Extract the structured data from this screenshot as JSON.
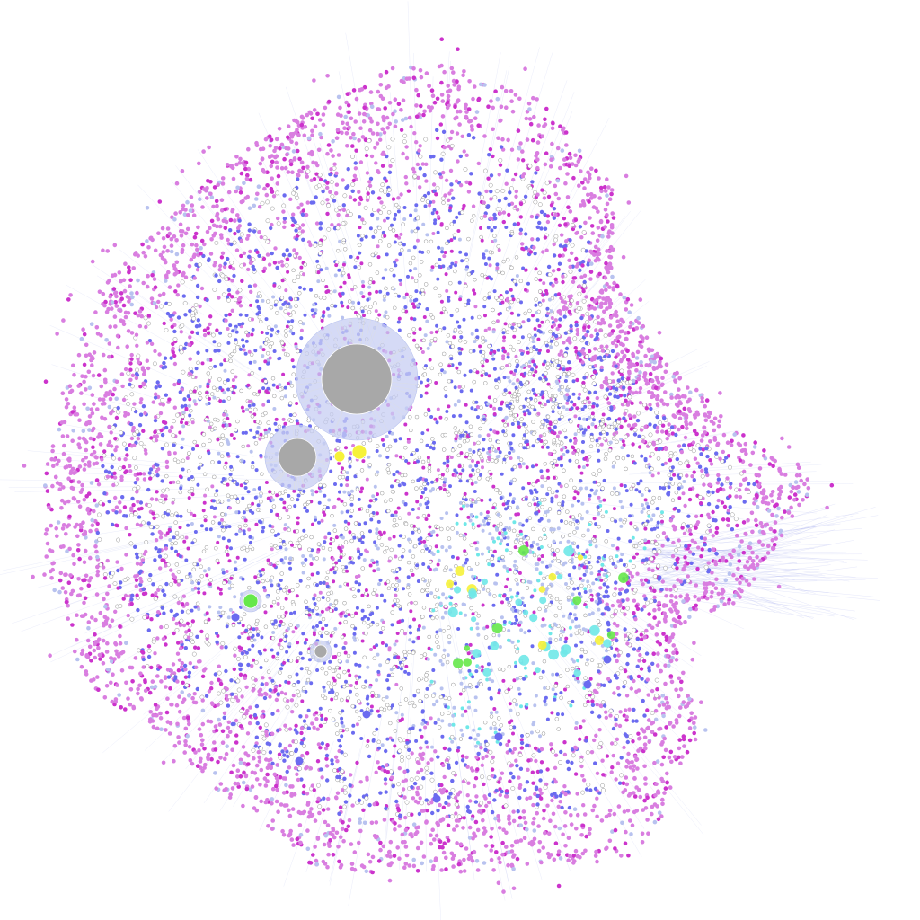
{
  "background_color": "#ffffff",
  "palette": {
    "magenta": "#d97ee0",
    "hot_magenta": "#cc33cc",
    "blue": "#6b6bf0",
    "light_blue": "#b8c2ef",
    "white_node": "#ffffff",
    "node_outline": "#7a7a7a",
    "cyan": "#6fe8e8",
    "hub_gray": "#a8a8a8",
    "halo_lavender": "#c7cdf3",
    "yellow": "#f6f23a",
    "green": "#66e84a",
    "edge": "#8a93e6"
  },
  "hubs": [
    {
      "name": "hub-central",
      "color": "#a8a8a8",
      "halo": true
    },
    {
      "name": "hub-secondary",
      "color": "#a8a8a8",
      "halo": true
    },
    {
      "name": "hub-small-gray",
      "color": "#a8a8a8",
      "halo": true
    },
    {
      "name": "hub-yellow-a",
      "color": "#f6f23a",
      "halo": false
    },
    {
      "name": "hub-yellow-b",
      "color": "#f6f23a",
      "halo": false
    },
    {
      "name": "hub-green",
      "color": "#66e84a",
      "halo": true
    },
    {
      "name": "hub-blue",
      "color": "#6b6bf0",
      "halo": false
    }
  ]
}
